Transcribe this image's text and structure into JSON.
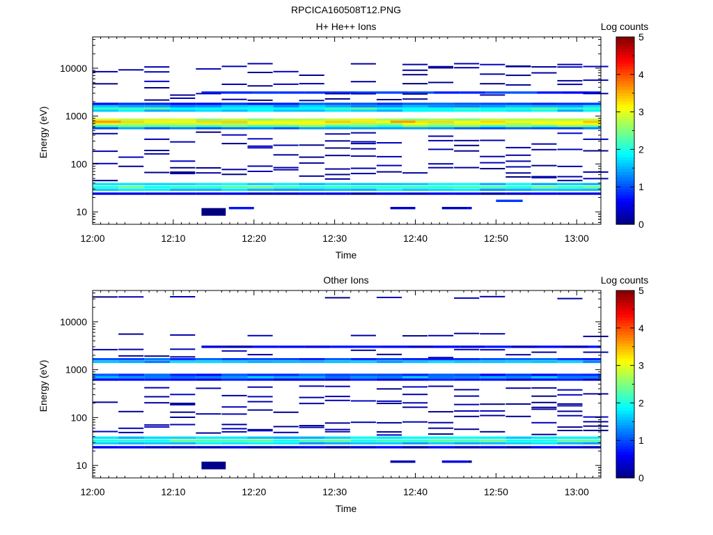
{
  "title": "RPCICA160508T12.PNG",
  "chart_data": [
    {
      "type": "heatmap",
      "title": "H+ He++ Ions",
      "xlabel": "Time",
      "ylabel": "Energy (eV)",
      "x_ticks": [
        "12:00",
        "12:10",
        "12:20",
        "12:30",
        "12:40",
        "12:50",
        "13:00"
      ],
      "x_range_minutes": [
        0,
        63
      ],
      "y_scale": "log",
      "y_ticks": [
        "10",
        "100",
        "1000",
        "10000"
      ],
      "ylim": [
        5.5,
        45000
      ],
      "colorbar": {
        "label": "Log counts",
        "range": [
          0,
          5
        ],
        "ticks": [
          "0",
          "1",
          "2",
          "3",
          "4",
          "5"
        ]
      },
      "bands": [
        {
          "e": 10,
          "t0": 13.5,
          "t1": 16.5,
          "v": 0.0,
          "h": 0.16
        },
        {
          "e": 12,
          "t0": 16.9,
          "t1": 20.0,
          "v": 0.5
        },
        {
          "e": 12,
          "t0": 36.9,
          "t1": 40.0,
          "v": 0.5
        },
        {
          "e": 12,
          "t0": 43.3,
          "t1": 47.0,
          "v": 0.5
        },
        {
          "e": 17,
          "t0": 50.0,
          "t1": 53.3,
          "v": 0.9
        },
        {
          "e": 24,
          "t0": 0.0,
          "t1": 63.0,
          "v": 0.4
        },
        {
          "e": 29,
          "t0": 0.0,
          "t1": 63.0,
          "v": 1.6
        },
        {
          "e": 33,
          "t0": 0.0,
          "t1": 63.0,
          "v": 2.2
        },
        {
          "e": 38,
          "t0": 0.0,
          "t1": 63.0,
          "v": 1.7
        },
        {
          "e": 560,
          "t0": 0.0,
          "t1": 63.0,
          "v": 1.2
        },
        {
          "e": 620,
          "t0": 0.0,
          "t1": 63.0,
          "v": 2.3
        },
        {
          "e": 690,
          "t0": 0.0,
          "t1": 63.0,
          "v": 2.9
        },
        {
          "e": 760,
          "t0": 0.0,
          "t1": 63.0,
          "v": 3.2
        },
        {
          "e": 840,
          "t0": 0.0,
          "t1": 63.0,
          "v": 2.7
        },
        {
          "e": 1300,
          "t0": 0.0,
          "t1": 63.0,
          "v": 1.7
        },
        {
          "e": 1450,
          "t0": 0.0,
          "t1": 63.0,
          "v": 2.1
        },
        {
          "e": 1600,
          "t0": 0.0,
          "t1": 63.0,
          "v": 1.5
        },
        {
          "e": 1800,
          "t0": 0.0,
          "t1": 63.0,
          "v": 0.9
        },
        {
          "e": 3100,
          "t0": 13.5,
          "t1": 63.0,
          "v": 0.8
        }
      ],
      "sparse_energies": [
        11500,
        10000,
        7800,
        5200,
        4300,
        2900,
        2300,
        420,
        320,
        260,
        200,
        150,
        105,
        85,
        70,
        60,
        50
      ],
      "peak_time_max": [
        {
          "e": 760,
          "t0": 0.0,
          "t1": 3.5,
          "v": 3.6
        },
        {
          "e": 760,
          "t0": 36.9,
          "t1": 40.0,
          "v": 3.6
        }
      ]
    },
    {
      "type": "heatmap",
      "title": "Other Ions",
      "xlabel": "Time",
      "ylabel": "Energy (eV)",
      "x_ticks": [
        "12:00",
        "12:10",
        "12:20",
        "12:30",
        "12:40",
        "12:50",
        "13:00"
      ],
      "x_range_minutes": [
        0,
        63
      ],
      "y_scale": "log",
      "y_ticks": [
        "10",
        "100",
        "1000",
        "10000"
      ],
      "ylim": [
        5.5,
        45000
      ],
      "colorbar": {
        "label": "Log counts",
        "range": [
          0,
          5
        ],
        "ticks": [
          "0",
          "1",
          "2",
          "3",
          "4",
          "5"
        ]
      },
      "bands": [
        {
          "e": 10,
          "t0": 13.5,
          "t1": 16.5,
          "v": 0.0,
          "h": 0.16
        },
        {
          "e": 12,
          "t0": 36.9,
          "t1": 40.0,
          "v": 0.3
        },
        {
          "e": 12,
          "t0": 43.3,
          "t1": 47.0,
          "v": 0.3
        },
        {
          "e": 24,
          "t0": 0.0,
          "t1": 63.0,
          "v": 0.4
        },
        {
          "e": 29,
          "t0": 0.0,
          "t1": 63.0,
          "v": 1.6
        },
        {
          "e": 33,
          "t0": 0.0,
          "t1": 63.0,
          "v": 2.2
        },
        {
          "e": 38,
          "t0": 0.0,
          "t1": 63.0,
          "v": 1.7
        },
        {
          "e": 620,
          "t0": 0.0,
          "t1": 63.0,
          "v": 0.6
        },
        {
          "e": 700,
          "t0": 0.0,
          "t1": 63.0,
          "v": 1.4
        },
        {
          "e": 780,
          "t0": 0.0,
          "t1": 63.0,
          "v": 0.9
        },
        {
          "e": 1450,
          "t0": 0.0,
          "t1": 63.0,
          "v": 1.5
        },
        {
          "e": 1650,
          "t0": 0.0,
          "t1": 63.0,
          "v": 1.0
        },
        {
          "e": 3000,
          "t0": 13.5,
          "t1": 63.0,
          "v": 0.5
        }
      ],
      "sparse_energies": [
        33000,
        5200,
        2500,
        1900,
        420,
        290,
        210,
        180,
        140,
        110,
        75,
        62,
        52,
        47
      ],
      "peak_time_max": []
    }
  ]
}
